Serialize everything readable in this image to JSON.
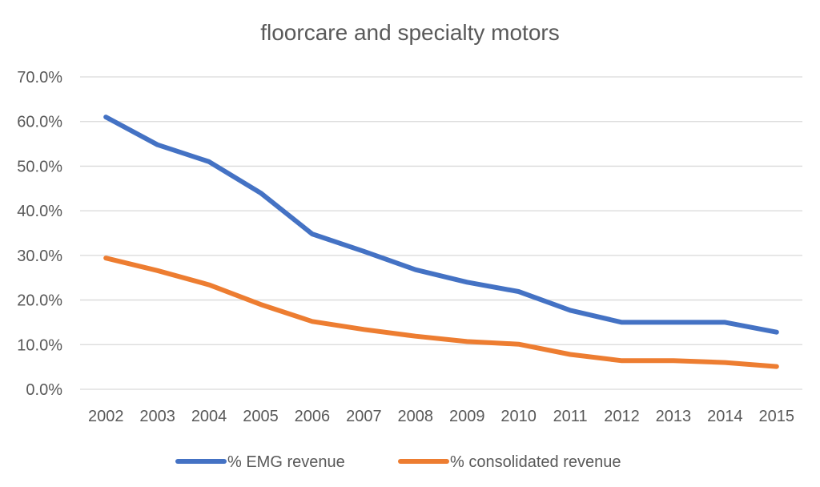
{
  "chart_data": {
    "type": "line",
    "title": "floorcare and specialty motors",
    "xlabel": "",
    "ylabel": "",
    "categories": [
      "2002",
      "2003",
      "2004",
      "2005",
      "2006",
      "2007",
      "2008",
      "2009",
      "2010",
      "2011",
      "2012",
      "2013",
      "2014",
      "2015"
    ],
    "series": [
      {
        "name": "% EMG revenue",
        "color": "#4472C4",
        "values": [
          61.0,
          54.8,
          51.0,
          44.0,
          34.8,
          30.9,
          26.8,
          24.0,
          21.9,
          17.7,
          15.0,
          15.0,
          15.0,
          12.8
        ]
      },
      {
        "name": "% consolidated revenue",
        "color": "#ED7D31",
        "values": [
          29.4,
          26.6,
          23.4,
          19.0,
          15.2,
          13.4,
          11.9,
          10.7,
          10.1,
          7.8,
          6.4,
          6.4,
          6.0,
          5.1
        ]
      }
    ],
    "ylim": [
      0,
      70
    ],
    "yticks": [
      "0.0%",
      "10.0%",
      "20.0%",
      "30.0%",
      "40.0%",
      "50.0%",
      "60.0%",
      "70.0%"
    ],
    "grid": true,
    "legend_position": "bottom"
  }
}
